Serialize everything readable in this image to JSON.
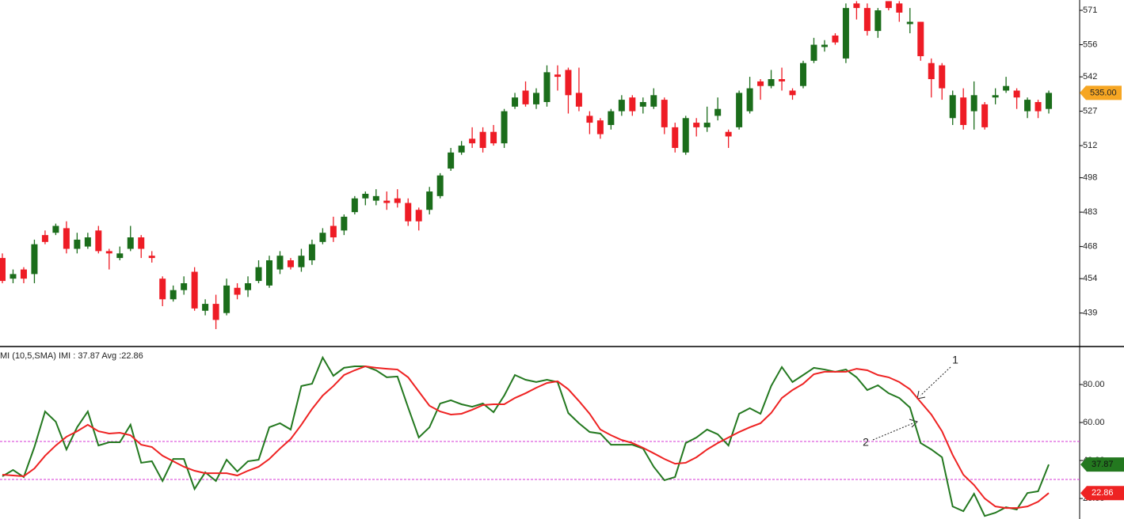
{
  "chart_data": [
    {
      "type": "candlestick",
      "up_color": "#1b6d1b",
      "down_color": "#ee1c25",
      "open": [
        463,
        454,
        458,
        456,
        473,
        474,
        476,
        467,
        468,
        475,
        466,
        463,
        467,
        472,
        464,
        454,
        445,
        449,
        457,
        440,
        443,
        439,
        450,
        449,
        453,
        451,
        458,
        462,
        459,
        462,
        470,
        477,
        475,
        483,
        489,
        488,
        488,
        489,
        487,
        484,
        484,
        490,
        502,
        509,
        515,
        518,
        518,
        513,
        529,
        536,
        530,
        531,
        543,
        545,
        535,
        525,
        523,
        521,
        527,
        533,
        529,
        529,
        532,
        520,
        509,
        522,
        520,
        525,
        518,
        520,
        527,
        540,
        538,
        541,
        536,
        538,
        549,
        555,
        560,
        550,
        574,
        572,
        562,
        575,
        574,
        565,
        566,
        548,
        547,
        524,
        533,
        527,
        530,
        533,
        536,
        536,
        527,
        531,
        528
      ],
      "high": [
        465,
        458,
        459,
        471,
        475,
        478,
        479,
        474,
        474,
        477,
        467,
        468,
        477,
        473,
        466,
        455,
        451,
        455,
        459,
        445,
        447,
        454,
        452,
        455,
        462,
        464,
        466,
        463,
        467,
        471,
        476,
        481,
        482,
        490,
        492,
        493,
        492,
        493,
        489,
        485,
        494,
        500,
        511,
        514,
        520,
        520,
        521,
        528,
        535,
        540,
        537,
        547,
        547,
        546,
        546,
        527,
        524,
        528,
        534,
        534,
        533,
        537,
        533,
        522,
        525,
        524,
        529,
        533,
        519,
        536,
        542,
        541,
        545,
        546,
        537,
        549,
        559,
        558,
        561,
        574,
        575,
        574,
        572,
        575,
        575,
        572,
        566,
        550,
        548,
        536,
        537,
        540,
        531,
        537,
        542,
        537,
        533,
        532,
        536
      ],
      "low": [
        452,
        452,
        452,
        452,
        469,
        473,
        465,
        465,
        467,
        465,
        458,
        462,
        466,
        463,
        461,
        442,
        444,
        447,
        440,
        438,
        432,
        438,
        445,
        446,
        452,
        450,
        456,
        458,
        457,
        460,
        469,
        470,
        473,
        482,
        486,
        486,
        484,
        485,
        477,
        475,
        482,
        489,
        501,
        508,
        511,
        509,
        512,
        511,
        528,
        529,
        528,
        529,
        536,
        526,
        527,
        517,
        515,
        519,
        525,
        525,
        526,
        528,
        517,
        509,
        508,
        516,
        518,
        523,
        511,
        519,
        526,
        532,
        537,
        536,
        532,
        537,
        548,
        553,
        556,
        548,
        567,
        560,
        559,
        571,
        566,
        561,
        549,
        533,
        532,
        521,
        519,
        519,
        519,
        530,
        535,
        528,
        524,
        524,
        526
      ],
      "close": [
        453,
        456,
        454,
        469,
        470,
        477,
        467,
        471,
        472,
        466,
        465,
        465,
        472,
        467,
        463,
        445,
        449,
        452,
        441,
        443,
        436,
        451,
        447,
        452,
        459,
        462,
        464,
        459,
        464,
        469,
        474,
        472,
        481,
        489,
        491,
        490,
        487,
        487,
        479,
        479,
        492,
        499,
        509,
        512,
        513,
        511,
        513,
        527,
        533,
        530,
        535,
        544,
        542,
        534,
        529,
        522,
        517,
        527,
        532,
        527,
        531,
        534,
        520,
        511,
        524,
        520,
        522,
        528,
        516,
        535,
        537,
        538,
        541,
        540,
        534,
        548,
        556,
        556,
        557,
        572,
        572,
        562,
        571,
        572,
        570,
        566,
        551,
        541,
        537,
        534,
        521,
        534,
        520,
        534,
        538,
        533,
        532,
        527,
        535
      ],
      "ylim": [
        424.4,
        575.5
      ],
      "yticks": [
        439,
        454,
        468,
        483,
        498,
        512,
        527,
        542,
        556,
        571
      ],
      "last_price": {
        "value": 535,
        "label": "535.00"
      }
    },
    {
      "type": "line",
      "title": "MI (10,5,SMA) IMI : 37.87 Avg :22.86",
      "series": [
        {
          "color": "#23781f",
          "values": [
            31.7,
            35.0,
            31.3,
            47.1,
            65.8,
            60.4,
            45.8,
            57.5,
            65.8,
            47.9,
            49.6,
            49.6,
            58.8,
            38.8,
            39.6,
            29.2,
            40.8,
            40.8,
            25.0,
            33.8,
            29.2,
            40.4,
            34.2,
            39.6,
            40.4,
            57.5,
            59.6,
            56.3,
            79.2,
            80.4,
            94.2,
            84.6,
            88.8,
            89.6,
            89.6,
            87.5,
            83.8,
            84.2,
            67.9,
            52.1,
            57.5,
            70.0,
            71.7,
            69.6,
            68.3,
            70.0,
            65.4,
            74.2,
            85.0,
            82.5,
            81.3,
            82.5,
            81.3,
            65.0,
            59.6,
            55.0,
            54.2,
            48.3,
            48.3,
            48.3,
            46.3,
            36.7,
            29.6,
            31.3,
            49.2,
            52.1,
            56.3,
            53.8,
            47.9,
            64.6,
            67.5,
            64.6,
            79.2,
            89.2,
            81.3,
            85.0,
            88.8,
            87.9,
            86.7,
            87.9,
            83.8,
            77.1,
            79.6,
            75.4,
            72.9,
            67.9,
            49.2,
            45.8,
            41.7,
            15.8,
            13.3,
            22.5,
            10.8,
            12.5,
            15.4,
            14.2,
            22.9,
            23.8,
            37.87
          ]
        },
        {
          "color": "#ee2222",
          "values": [
            32.5,
            32.1,
            31.7,
            35.8,
            42.5,
            47.9,
            52.5,
            55.4,
            58.8,
            55.4,
            54.2,
            54.6,
            53.3,
            48.3,
            47.1,
            42.5,
            39.6,
            36.7,
            34.6,
            33.3,
            33.3,
            33.3,
            32.1,
            34.6,
            36.7,
            40.8,
            46.3,
            51.3,
            58.8,
            67.1,
            74.2,
            79.2,
            85.0,
            87.5,
            89.6,
            88.8,
            88.3,
            87.9,
            83.8,
            76.3,
            68.8,
            65.8,
            64.2,
            64.6,
            66.7,
            69.2,
            69.6,
            69.6,
            72.9,
            75.4,
            78.3,
            80.8,
            81.7,
            77.5,
            71.3,
            64.6,
            56.3,
            53.3,
            50.8,
            49.2,
            46.7,
            43.8,
            40.8,
            38.3,
            38.8,
            41.7,
            45.8,
            49.2,
            52.1,
            55.0,
            57.5,
            59.6,
            65.0,
            72.9,
            77.1,
            80.4,
            85.4,
            86.7,
            86.7,
            86.7,
            88.3,
            87.5,
            85.0,
            83.8,
            81.3,
            77.5,
            70.8,
            64.2,
            55.4,
            42.9,
            32.5,
            27.1,
            20.0,
            15.8,
            15.0,
            15.0,
            15.8,
            18.3,
            22.86
          ]
        }
      ],
      "ylim": [
        9.2,
        100
      ],
      "yticks": [
        {
          "value": 80,
          "label": "80.00"
        },
        {
          "value": 60,
          "label": "60.00"
        },
        {
          "value": 40,
          "label": "40.00"
        },
        {
          "value": 20,
          "label": "20.00"
        }
      ],
      "levels": [
        50,
        30
      ],
      "level_color": "#d633d6",
      "annotations": [
        "1",
        "2"
      ]
    }
  ]
}
